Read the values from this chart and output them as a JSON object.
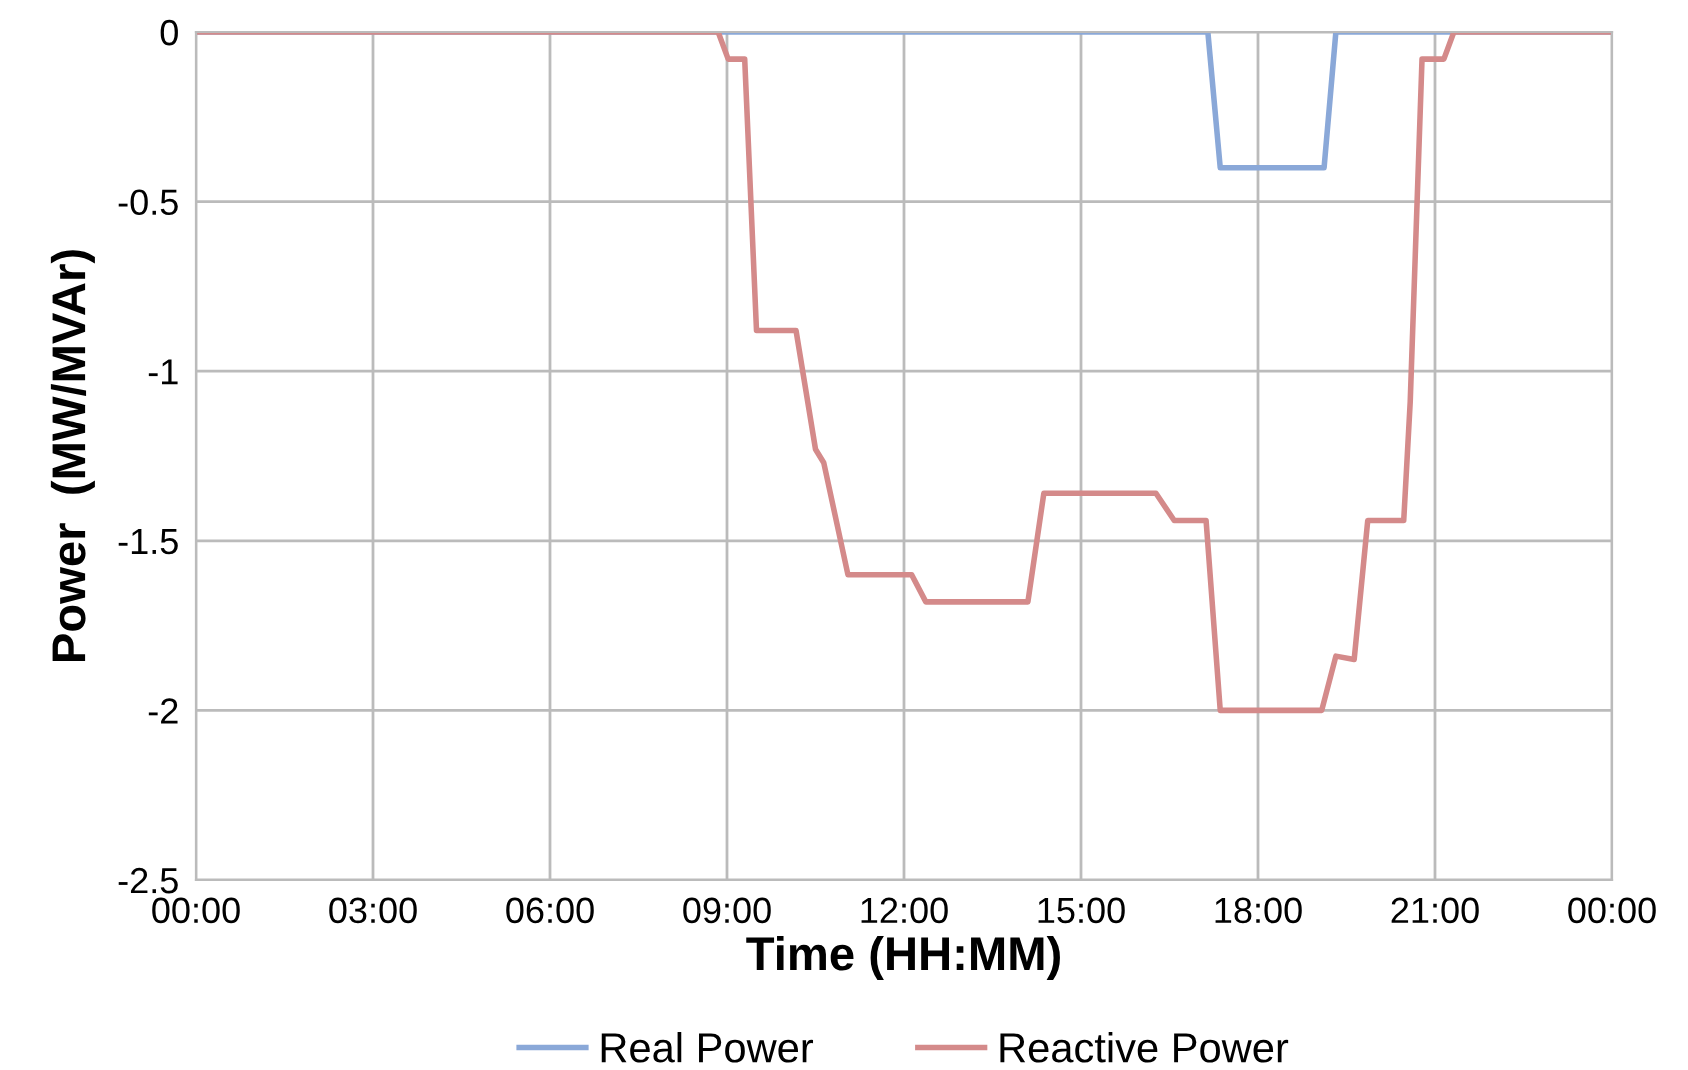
{
  "chart_data": {
    "type": "line",
    "xlabel": "Time (HH:MM)",
    "ylabel": "Power  (MW/MVAr)",
    "xlim": [
      0,
      24
    ],
    "xticks": [
      {
        "value": 0,
        "label": "00:00"
      },
      {
        "value": 3,
        "label": "03:00"
      },
      {
        "value": 6,
        "label": "06:00"
      },
      {
        "value": 9,
        "label": "09:00"
      },
      {
        "value": 12,
        "label": "12:00"
      },
      {
        "value": 15,
        "label": "15:00"
      },
      {
        "value": 18,
        "label": "18:00"
      },
      {
        "value": 21,
        "label": "21:00"
      },
      {
        "value": 24,
        "label": "00:00"
      }
    ],
    "ylim": [
      -2.5,
      0
    ],
    "yticks": [
      -2.5,
      -2,
      -1.5,
      -1,
      -0.5,
      0
    ],
    "grid": true,
    "legend": "bottom",
    "series": [
      {
        "name": "Real Power",
        "color": "#8aa8d8",
        "x": [
          0,
          17.15,
          17.36,
          19.12,
          19.32,
          24
        ],
        "values": [
          0,
          0,
          -0.4,
          -0.4,
          0,
          0
        ]
      },
      {
        "name": "Reactive Power",
        "color": "#d48a8a",
        "x": [
          0,
          8.85,
          9.02,
          9.3,
          9.5,
          10.17,
          10.5,
          10.64,
          11.05,
          12.13,
          12.37,
          14.1,
          14.37,
          16.27,
          16.58,
          17.12,
          17.36,
          19.08,
          19.32,
          19.63,
          19.86,
          20.47,
          20.58,
          20.78,
          21.15,
          21.32,
          24
        ],
        "values": [
          0,
          0,
          -0.08,
          -0.08,
          -0.88,
          -0.88,
          -1.23,
          -1.27,
          -1.6,
          -1.6,
          -1.68,
          -1.68,
          -1.36,
          -1.36,
          -1.44,
          -1.44,
          -2.0,
          -2.0,
          -1.84,
          -1.85,
          -1.44,
          -1.44,
          -1.09,
          -0.08,
          -0.08,
          0,
          0
        ]
      }
    ]
  }
}
